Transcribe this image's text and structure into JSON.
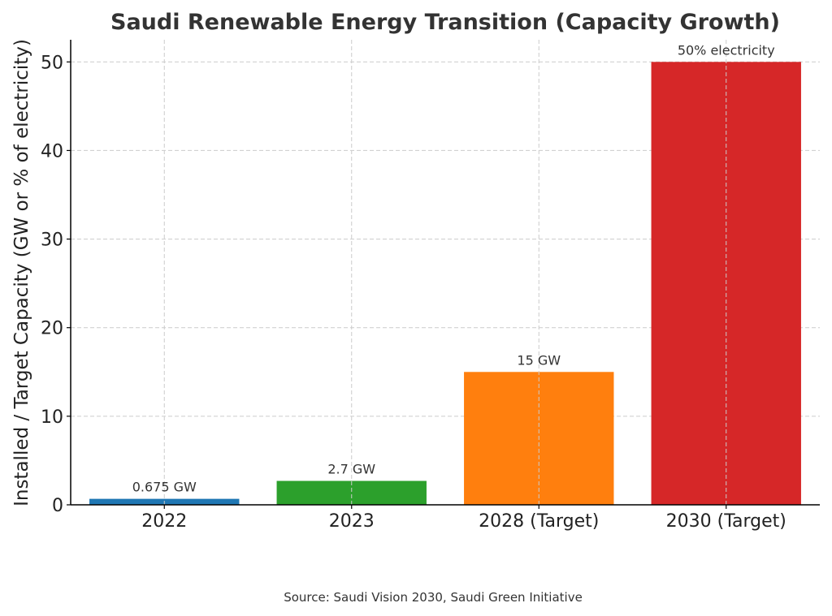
{
  "chart_data": {
    "type": "bar",
    "title": "Saudi Renewable Energy Transition (Capacity Growth)",
    "xlabel": "",
    "ylabel": "Installed / Target Capacity (GW or % of electricity)",
    "categories": [
      "2022",
      "2023",
      "2028 (Target)",
      "2030 (Target)"
    ],
    "values": [
      0.675,
      2.7,
      15,
      50
    ],
    "data_labels": [
      "0.675 GW",
      "2.7 GW",
      "15 GW",
      "50% electricity"
    ],
    "colors": [
      "#1f77b4",
      "#2ca02c",
      "#ff7f0e",
      "#d62728"
    ],
    "ylim": [
      0,
      52.5
    ],
    "yticks": [
      0,
      10,
      20,
      30,
      40,
      50
    ],
    "grid": true,
    "source_note": "Source: Saudi Vision 2030, Saudi Green Initiative"
  }
}
